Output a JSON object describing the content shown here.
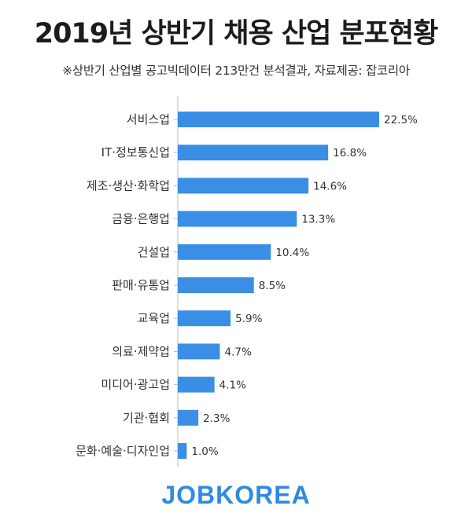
{
  "title": "2019년 상반기 채용 산업 분포현황",
  "subtitle": "※상반기 산업별 공고빅데이터 213만건 분석결과,  자료제공: 잡코리아",
  "brand": "JOBKOREA",
  "colors": {
    "bar": "#3a8ee6",
    "axis": "#bbbbbb",
    "brand": "#2f8ae0"
  },
  "chart_data": {
    "type": "bar",
    "orientation": "horizontal",
    "title": "2019년 상반기 채용 산업 분포현황",
    "categories": [
      "서비스업",
      "IT·정보통신업",
      "제조·생산·화학업",
      "금융·은행업",
      "건설업",
      "판매·유통업",
      "교육업",
      "의료·제약업",
      "미디어·광고업",
      "기관·협회",
      "문화·예술·디자인업"
    ],
    "values": [
      22.5,
      16.8,
      14.6,
      13.3,
      10.4,
      8.5,
      5.9,
      4.7,
      4.1,
      2.3,
      1.0
    ],
    "value_labels": [
      "22.5%",
      "16.8%",
      "14.6%",
      "13.3%",
      "10.4%",
      "8.5%",
      "5.9%",
      "4.7%",
      "4.1%",
      "2.3%",
      "1.0%"
    ],
    "xlim": [
      0,
      22.5
    ],
    "grid": false,
    "legend": "none"
  }
}
